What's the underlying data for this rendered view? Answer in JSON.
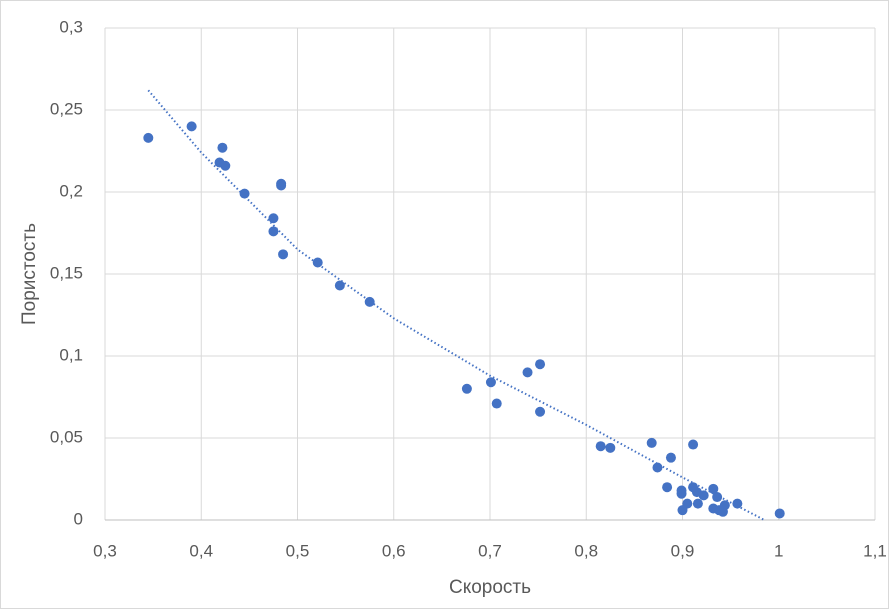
{
  "chart_data": {
    "type": "scatter",
    "color": "#4472c4",
    "grid": true,
    "xlabel": "Скорость",
    "ylabel": "Пористость",
    "xlim": [
      0.3,
      1.1
    ],
    "xticks": [
      {
        "value": 0.3,
        "label": "0,3"
      },
      {
        "value": 0.4,
        "label": "0,4"
      },
      {
        "value": 0.5,
        "label": "0,5"
      },
      {
        "value": 0.6,
        "label": "0,6"
      },
      {
        "value": 0.7,
        "label": "0,7"
      },
      {
        "value": 0.8,
        "label": "0,8"
      },
      {
        "value": 0.9,
        "label": "0,9"
      },
      1,
      {
        "value": 1.1,
        "label": "1,1"
      }
    ],
    "ylim": [
      0,
      0.3
    ],
    "yticks": [
      0,
      {
        "value": 0.05,
        "label": "0,05"
      },
      {
        "value": 0.1,
        "label": "0,1"
      },
      {
        "value": 0.15,
        "label": "0,15"
      },
      {
        "value": 0.2,
        "label": "0,2"
      },
      {
        "value": 0.25,
        "label": "0,25"
      },
      {
        "value": 0.3,
        "label": "0,3"
      }
    ],
    "x": [
      0.345,
      0.39,
      0.422,
      0.419,
      0.425,
      0.445,
      0.483,
      0.483,
      0.475,
      0.475,
      0.485,
      0.521,
      0.544,
      0.575,
      0.676,
      0.701,
      0.707,
      0.739,
      0.752,
      0.752,
      0.815,
      0.825,
      0.868,
      0.874,
      0.888,
      0.911,
      0.884,
      0.899,
      0.899,
      0.911,
      0.915,
      0.922,
      0.932,
      0.936,
      0.905,
      0.9,
      0.916,
      0.932,
      0.944,
      0.957,
      0.942,
      1.001,
      0.938
    ],
    "y": [
      0.233,
      0.24,
      0.227,
      0.218,
      0.216,
      0.199,
      0.205,
      0.204,
      0.184,
      0.176,
      0.162,
      0.157,
      0.143,
      0.133,
      0.08,
      0.084,
      0.071,
      0.09,
      0.095,
      0.066,
      0.045,
      0.044,
      0.047,
      0.032,
      0.038,
      0.046,
      0.02,
      0.018,
      0.016,
      0.02,
      0.017,
      0.015,
      0.019,
      0.014,
      0.01,
      0.006,
      0.01,
      0.007,
      0.009,
      0.01,
      0.005,
      0.004,
      0.006
    ],
    "trendline": {
      "x": [
        0.345,
        0.4,
        0.5,
        0.6,
        0.7,
        0.8,
        0.9,
        0.985
      ],
      "y": [
        0.262,
        0.224,
        0.165,
        0.123,
        0.088,
        0.058,
        0.026,
        0
      ]
    }
  }
}
